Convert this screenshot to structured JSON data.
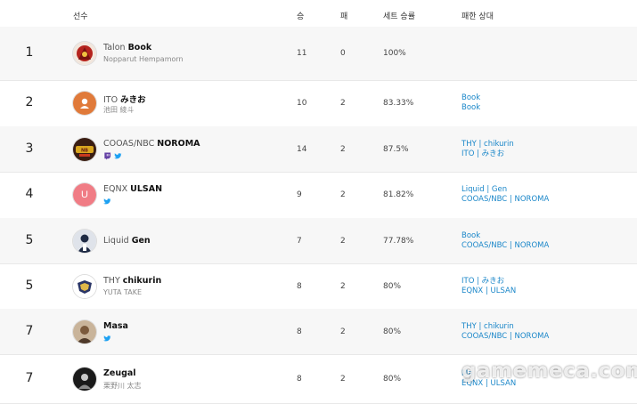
{
  "header": {
    "player": "선수",
    "wins": "승",
    "losses": "패",
    "set_winrate": "세트 승률",
    "defeated_by": "패한 상대"
  },
  "rows": [
    {
      "rank": "1",
      "team": "Talon",
      "name": "Book",
      "sub": "Nopparut Hempamorn",
      "icons": [
        "twitch",
        "twitter"
      ],
      "wins": "11",
      "losses": "0",
      "rate": "100%",
      "opp1": "",
      "opp2": "",
      "avatar": "red"
    },
    {
      "rank": "2",
      "team": "ITO",
      "name": "みきお",
      "sub": "池田 綾斗",
      "icons": [],
      "wins": "10",
      "losses": "2",
      "rate": "83.33%",
      "opp1": "Book",
      "opp2": "Book",
      "avatar": "orange"
    },
    {
      "rank": "3",
      "team": "COOAS/NBC",
      "name": "NOROMA",
      "sub": "",
      "icons": [
        "twitch",
        "twitter"
      ],
      "wins": "14",
      "losses": "2",
      "rate": "87.5%",
      "opp1": "THY | chikurin",
      "opp2": "ITO | みきお",
      "avatar": "gold"
    },
    {
      "rank": "4",
      "team": "EQNX",
      "name": "ULSAN",
      "sub": "",
      "icons": [
        "twitter"
      ],
      "wins": "9",
      "losses": "2",
      "rate": "81.82%",
      "opp1": "Liquid | Gen",
      "opp2": "COOAS/NBC | NOROMA",
      "avatar": "pink",
      "avatar_letter": "U"
    },
    {
      "rank": "5",
      "team": "Liquid",
      "name": "Gen",
      "sub": "",
      "icons": [],
      "wins": "7",
      "losses": "2",
      "rate": "77.78%",
      "opp1": "Book",
      "opp2": "COOAS/NBC | NOROMA",
      "avatar": "navy"
    },
    {
      "rank": "5",
      "team": "THY",
      "name": "chikurin",
      "sub": "YUTA TAKE",
      "icons": [],
      "wins": "8",
      "losses": "2",
      "rate": "80%",
      "opp1": "ITO | みきお",
      "opp2": "EQNX | ULSAN",
      "avatar": "white"
    },
    {
      "rank": "7",
      "team": "",
      "name": "Masa",
      "sub": "",
      "icons": [
        "twitter"
      ],
      "wins": "8",
      "losses": "2",
      "rate": "80%",
      "opp1": "THY | chikurin",
      "opp2": "COOAS/NBC | NOROMA",
      "avatar": "brown"
    },
    {
      "rank": "7",
      "team": "",
      "name": "Zeugal",
      "sub": "栗野川 太志",
      "icons": [],
      "wins": "8",
      "losses": "2",
      "rate": "80%",
      "opp1": "Ma",
      "opp2": "EQNX | ULSAN",
      "avatar": "dark"
    }
  ],
  "watermark": "gamemeca.com",
  "colors": {
    "link": "#1b87c9",
    "twitch": "#6441a5",
    "twitter": "#1da1f2"
  }
}
